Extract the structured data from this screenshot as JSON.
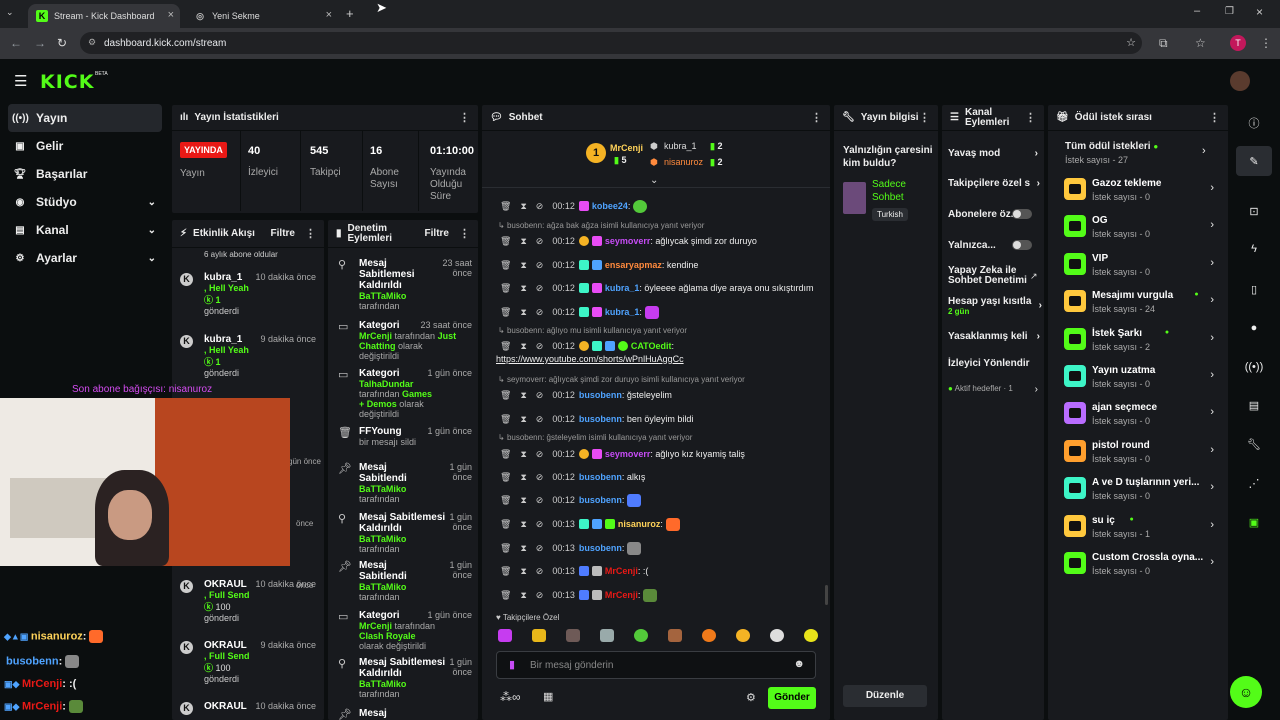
{
  "browser": {
    "tabs": [
      {
        "title": "Stream - Kick Dashboard"
      },
      {
        "title": "Yeni Sekme"
      }
    ],
    "url": "dashboard.kick.com/stream",
    "profile_initial": "T"
  },
  "brand": {
    "logo": "KICK",
    "beta": "BETA",
    "accent": "#53fc18"
  },
  "sidebar": {
    "items": [
      {
        "label": "Yayın",
        "icon": "broadcast-icon"
      },
      {
        "label": "Gelir",
        "icon": "wallet-icon"
      },
      {
        "label": "Başarılar",
        "icon": "trophy-icon"
      },
      {
        "label": "Stüdyo",
        "icon": "studio-icon"
      },
      {
        "label": "Kanal",
        "icon": "channel-icon"
      },
      {
        "label": "Ayarlar",
        "icon": "gear-icon"
      }
    ]
  },
  "stats": {
    "title": "Yayın İstatistikleri",
    "live_label": "YAYINDA",
    "live_sub": "Yayın",
    "viewers": "40",
    "viewers_label": "İzleyici",
    "followers": "545",
    "followers_label": "Takipçi",
    "subs": "16",
    "subs_label": "Abone Sayısı",
    "uptime": "01:10:00",
    "uptime_label": "Yayında Olduğu Süre"
  },
  "activity": {
    "title": "Etkinlik Akışı",
    "filter": "Filtre",
    "top_text": "6 aylık abone oldular",
    "items": [
      {
        "name": "kubra_1",
        "act": ", Hell Yeah",
        "amount": "1",
        "sent": "gönderdi",
        "time": "10 dakika önce"
      },
      {
        "name": "kubra_1",
        "act": ", Hell Yeah",
        "amount": "1",
        "sent": "gönderdi",
        "time": "9 dakika önce"
      },
      {
        "name": "OKRAUL",
        "act": ", Full Send",
        "amount": "100",
        "sent": "gönderdi",
        "time": "10 dakika önce"
      },
      {
        "name": "OKRAUL",
        "act": ", Full Send",
        "amount": "100",
        "sent": "gönderdi",
        "time": "9 dakika önce"
      },
      {
        "name": "OKRAUL",
        "act": "",
        "amount": "",
        "sent": "",
        "time": "10 dakika önce"
      }
    ],
    "hidden_times": [
      "gün önce",
      "önce",
      "önce"
    ]
  },
  "moderation": {
    "title": "Denetim Eylemleri",
    "filter": "Filtre",
    "items": [
      {
        "title": "Mesaj Sabitlemesi Kaldırıldı",
        "who": "BaTTaMiko",
        "tail": "tarafından",
        "time": "23 saat önce"
      },
      {
        "title": "Kategori",
        "who": "MrCenji",
        "tail": "tarafından",
        "extra": "Just Chatting",
        "tail2": "olarak değiştirildi",
        "time": "23 saat önce"
      },
      {
        "title": "Kategori",
        "who": "TalhaDundar",
        "tail": "tarafından",
        "extra": "Games + Demos",
        "tail2": "olarak değiştirildi",
        "time": "1 gün önce"
      },
      {
        "title": "FFYoung",
        "sub": "bir mesajı sildi",
        "time": "1 gün önce"
      },
      {
        "title": "Mesaj Sabitlendi",
        "who": "BaTTaMiko",
        "tail": "tarafından",
        "time": "1 gün önce"
      },
      {
        "title": "Mesaj Sabitlemesi Kaldırıldı",
        "who": "BaTTaMiko",
        "tail": "tarafından",
        "time": "1 gün önce"
      },
      {
        "title": "Mesaj Sabitlendi",
        "who": "BaTTaMiko",
        "tail": "tarafından",
        "time": "1 gün önce"
      },
      {
        "title": "Kategori",
        "who": "MrCenji",
        "tail": "tarafından",
        "extra": "Clash Royale",
        "tail2": "olarak değiştirildi",
        "time": "1 gün önce"
      },
      {
        "title": "Mesaj Sabitlemesi Kaldırıldı",
        "who": "BaTTaMiko",
        "tail": "tarafından",
        "time": "1 gün önce"
      },
      {
        "title": "Mesaj",
        "time": ""
      }
    ]
  },
  "chat": {
    "title": "Sohbet",
    "top_gifters": [
      {
        "name": "MrCenji",
        "count": "5"
      },
      {
        "name": "kubra_1",
        "count": "2"
      },
      {
        "name": "nisanuroz",
        "count": "2"
      }
    ],
    "messages": [
      {
        "time": "00:12",
        "user": "kobee24",
        "color": "#4fa3ff",
        "text": ":"
      },
      {
        "reply": "busobenn: ağza bak ağza isimli kullanıcıya yanıt veriyor"
      },
      {
        "time": "00:12",
        "user": "seymoverr",
        "color": "#c64cf5",
        "text": ": ağlıycak şimdi zor duruyo"
      },
      {
        "time": "00:12",
        "user": "ensaryapmaz",
        "color": "#ff8a3d",
        "text": ": kendine"
      },
      {
        "time": "00:12",
        "user": "kubra_1",
        "color": "#4fa3ff",
        "text": ": öyleeee ağlama diye araya onu sıkıştırdım"
      },
      {
        "time": "00:12",
        "user": "kubra_1",
        "color": "#4fa3ff",
        "text": ":"
      },
      {
        "reply": "busobenn: ağlıyo mu isimli kullanıcıya yanıt veriyor"
      },
      {
        "time": "00:12",
        "user": "CATOedit",
        "color": "#53fc18",
        "text": ":",
        "link": "https://www.youtube.com/shorts/wPnlHuAggCc"
      },
      {
        "reply": "seymoverr: ağlıycak şimdi zor duruyo isimli kullanıcıya yanıt veriyor"
      },
      {
        "time": "00:12",
        "user": "busobenn",
        "color": "#4fa3ff",
        "text": ": ğsteleyelim"
      },
      {
        "time": "00:12",
        "user": "busobenn",
        "color": "#4fa3ff",
        "text": ": ben öyleyim bildi"
      },
      {
        "reply": "busobenn: ğsteleyelim isimli kullanıcıya yanıt veriyor"
      },
      {
        "time": "00:12",
        "user": "seymoverr",
        "color": "#c64cf5",
        "text": ": ağlıyo kız kıyamiş taliş"
      },
      {
        "time": "00:12",
        "user": "busobenn",
        "color": "#4fa3ff",
        "text": ": alkış"
      },
      {
        "time": "00:12",
        "user": "busobenn",
        "color": "#4fa3ff",
        "text": ":"
      },
      {
        "time": "00:13",
        "user": "nisanuroz",
        "color": "#ffd35a",
        "text": ":"
      },
      {
        "time": "00:13",
        "user": "busobenn",
        "color": "#4fa3ff",
        "text": ":"
      },
      {
        "time": "00:13",
        "user": "MrCenji",
        "color": "#e91916",
        "text": ": :("
      },
      {
        "time": "00:13",
        "user": "MrCenji",
        "color": "#e91916",
        "text": ":"
      }
    ],
    "followers_only": "Takipçilere Özel",
    "placeholder": "Bir mesaj gönderin",
    "send": "Gönder"
  },
  "streaminfo": {
    "title": "Yayın bilgisi",
    "stream_title": "Yalnızlığın çaresini kim buldu?",
    "category": "Sadece Sohbet",
    "language": "Turkish",
    "edit": "Düzenle"
  },
  "channelactions": {
    "title": "Kanal Eylemleri",
    "items": [
      {
        "label": "Yavaş mod",
        "type": "chev"
      },
      {
        "label": "Takipçilere özel s",
        "type": "chev"
      },
      {
        "label": "Abonelere öz...",
        "type": "toggle"
      },
      {
        "label": "Yalnızca...",
        "type": "toggle"
      },
      {
        "label": "Yapay Zeka ile Sohbet Denetimi",
        "type": "ext"
      },
      {
        "label": "Hesap yaşı kısıtla",
        "sub": "2 gün",
        "type": "chev"
      },
      {
        "label": "Yasaklanmış keli",
        "type": "chev"
      },
      {
        "label": "İzleyici Yönlendir",
        "type": "none"
      },
      {
        "label": "Aktif hedefler · 1",
        "type": "chev"
      }
    ]
  },
  "rewards": {
    "title": "Ödül istek sırası",
    "all": "Tüm ödül istekleri",
    "all_sub": "İstek sayısı - 27",
    "items": [
      {
        "name": "Gazoz tekleme",
        "count": "İstek sayısı - 0",
        "color": "#ffc83d"
      },
      {
        "name": "OG",
        "count": "İstek sayısı - 0",
        "color": "#53fc18"
      },
      {
        "name": "VIP",
        "count": "İstek sayısı - 0",
        "color": "#53fc18"
      },
      {
        "name": "Mesajımı vurgula",
        "count": "İstek sayısı - 24",
        "color": "#ffc83d",
        "dot": true
      },
      {
        "name": "İstek Şarkı",
        "count": "İstek sayısı - 2",
        "color": "#53fc18",
        "dot": true
      },
      {
        "name": "Yayın uzatma",
        "count": "İstek sayısı - 0",
        "color": "#3df5c7"
      },
      {
        "name": "ajan seçmece",
        "count": "İstek sayısı - 0",
        "color": "#b96cff"
      },
      {
        "name": "pistol round",
        "count": "İstek sayısı - 0",
        "color": "#ff9f2e"
      },
      {
        "name": "A ve D tuşlarının yeri...",
        "count": "İstek sayısı - 0",
        "color": "#3df5c7"
      },
      {
        "name": "su iç",
        "count": "İstek sayısı - 1",
        "color": "#ffc83d",
        "dot": true
      },
      {
        "name": "Custom Crossla oyna...",
        "count": "İstek sayısı - 0",
        "color": "#53fc18"
      }
    ]
  },
  "overlay": {
    "donation": "Son abone bağışçısı: nisanuroz",
    "lines": [
      {
        "user": "nisanuroz",
        "color": "#ffd35a",
        "text": ":"
      },
      {
        "user": "busobenn",
        "color": "#4fa3ff",
        "text": ":"
      },
      {
        "user": "MrCenji",
        "color": "#e91916",
        "text": ": :("
      },
      {
        "user": "MrCenji",
        "color": "#e91916",
        "text": ":"
      }
    ]
  }
}
